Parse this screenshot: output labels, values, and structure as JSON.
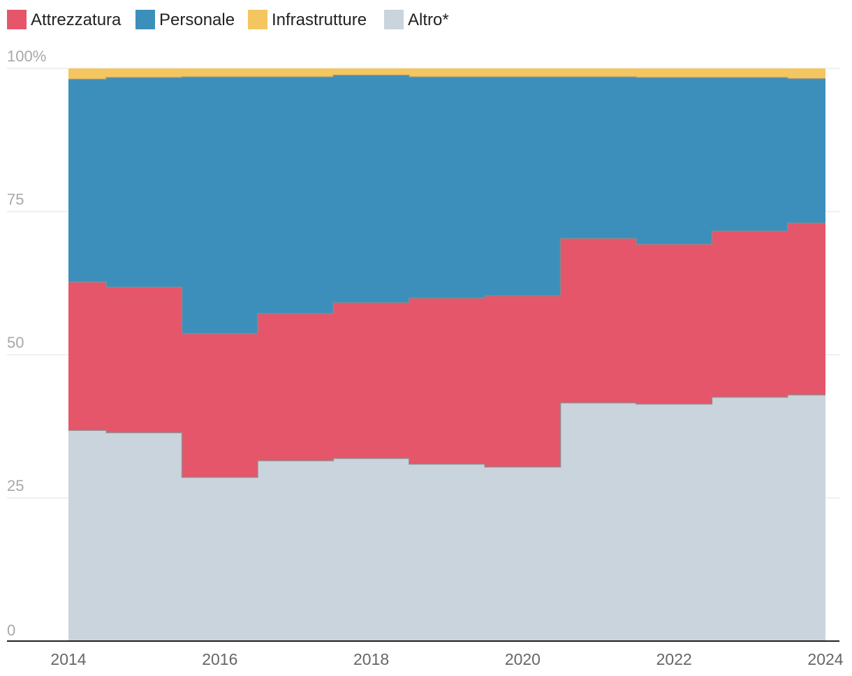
{
  "chart_data": {
    "type": "area",
    "stacking": "percent",
    "step": true,
    "x": [
      2014,
      2015,
      2016,
      2017,
      2018,
      2019,
      2020,
      2021,
      2022,
      2023,
      2024
    ],
    "series": [
      {
        "name": "Altro*",
        "color": "#c9d4dc",
        "values": [
          36.8,
          36.4,
          28.6,
          31.5,
          31.9,
          30.9,
          30.4,
          41.6,
          41.4,
          42.6,
          43.0
        ]
      },
      {
        "name": "Attrezzatura",
        "color": "#e5566b",
        "values": [
          25.9,
          25.4,
          25.1,
          25.7,
          27.2,
          29.0,
          29.9,
          28.7,
          27.9,
          29.0,
          30.0
        ]
      },
      {
        "name": "Personale",
        "color": "#3d8fbb",
        "values": [
          35.4,
          36.6,
          44.8,
          41.3,
          39.7,
          38.6,
          38.2,
          28.2,
          29.1,
          26.8,
          25.2
        ]
      },
      {
        "name": "Infrastrutture",
        "color": "#f4c65f",
        "values": [
          1.9,
          1.6,
          1.5,
          1.5,
          1.2,
          1.5,
          1.5,
          1.5,
          1.6,
          1.6,
          1.8
        ]
      }
    ],
    "legend_order": [
      "Attrezzatura",
      "Personale",
      "Infrastrutture",
      "Altro*"
    ],
    "legend_position": "top-left",
    "ylim": [
      0,
      100
    ],
    "y_ticks": [
      {
        "value": 0,
        "label": "0"
      },
      {
        "value": 25,
        "label": "25"
      },
      {
        "value": 50,
        "label": "50"
      },
      {
        "value": 75,
        "label": "75"
      },
      {
        "value": 100,
        "label": "100%"
      }
    ],
    "x_ticks": [
      {
        "value": 2014,
        "label": "2014"
      },
      {
        "value": 2016,
        "label": "2016"
      },
      {
        "value": 2018,
        "label": "2018"
      },
      {
        "value": 2020,
        "label": "2020"
      },
      {
        "value": 2022,
        "label": "2022"
      },
      {
        "value": 2024,
        "label": "2024"
      }
    ],
    "grid": true,
    "title": "",
    "xlabel": "",
    "ylabel": ""
  }
}
